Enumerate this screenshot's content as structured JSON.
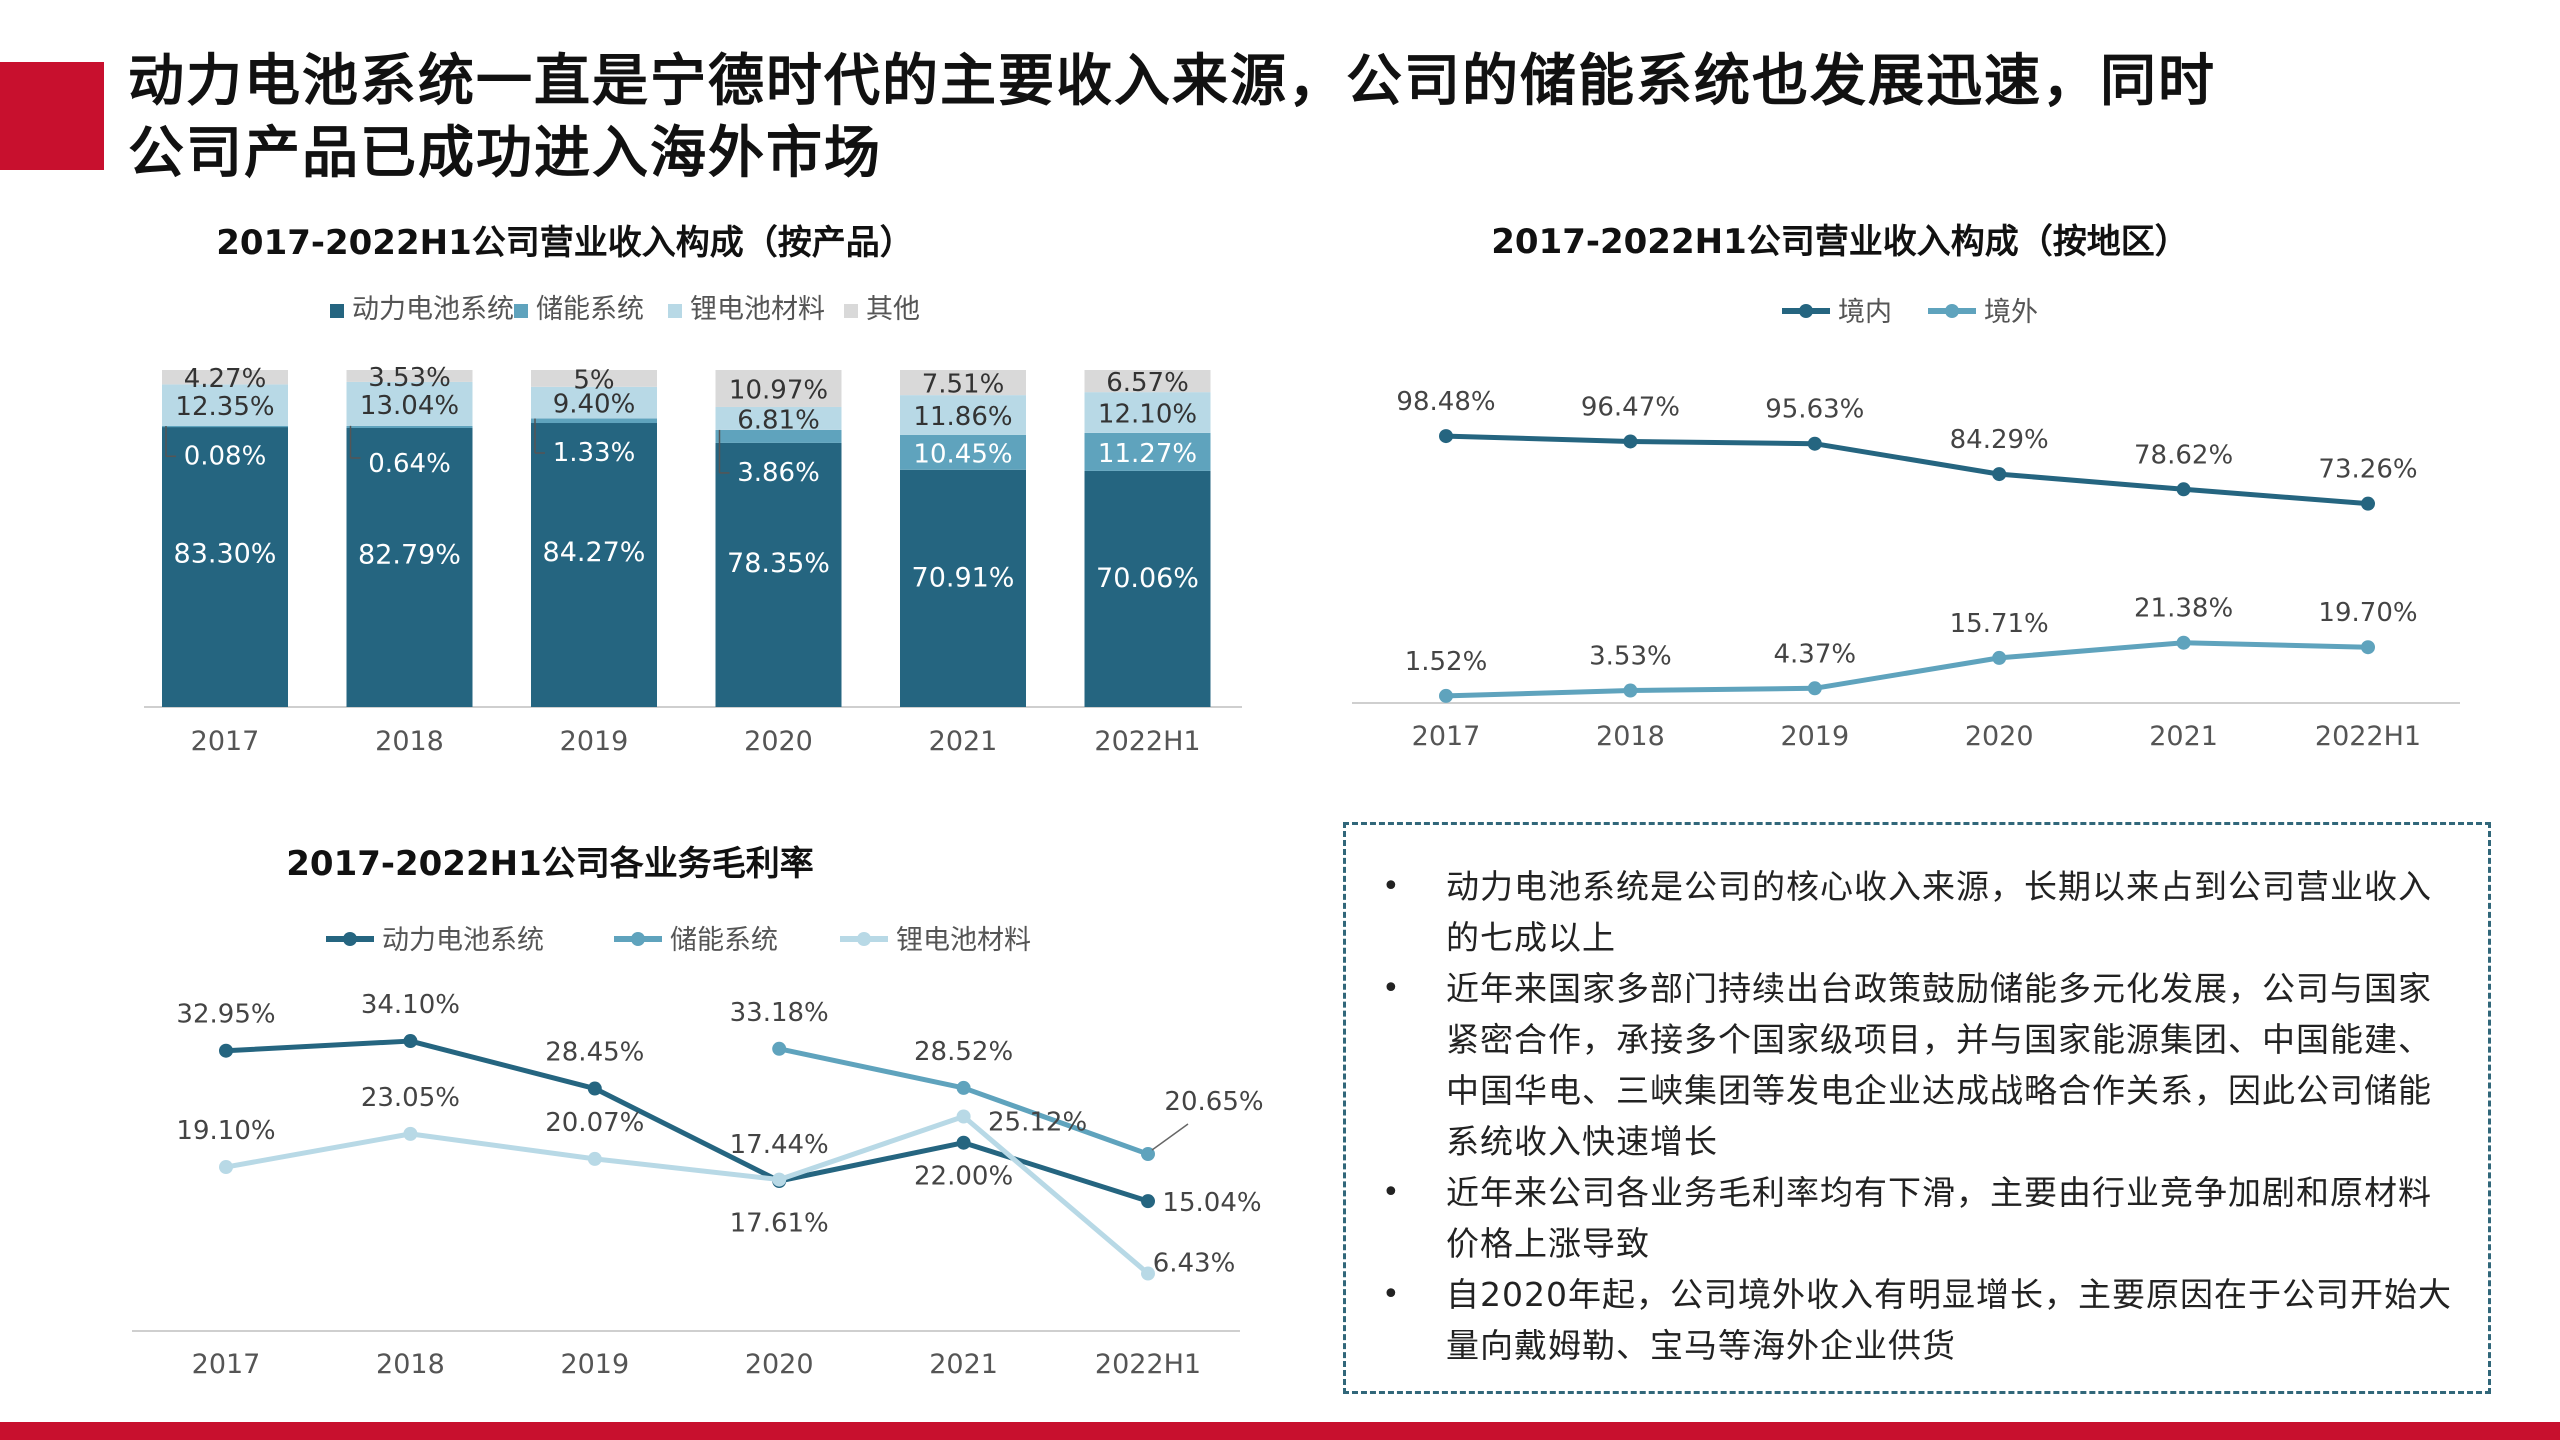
{
  "header": {
    "title_line1": "动力电池系统一直是宁德时代的主要收入来源，公司的储能系统也发展迅速，同时",
    "title_line2": "公司产品已成功进入海外市场"
  },
  "colors": {
    "accent": "#c8102e",
    "dark": "#256580",
    "mid": "#5fa3bd",
    "light": "#b8d9e6",
    "other": "#d9d9d9"
  },
  "chart_data": [
    {
      "type": "bar",
      "stacked": true,
      "title": "2017-2022H1公司营业收入构成（按产品）",
      "categories": [
        "2017",
        "2018",
        "2019",
        "2020",
        "2021",
        "2022H1"
      ],
      "series": [
        {
          "name": "动力电池系统",
          "values": [
            83.3,
            82.79,
            84.27,
            78.35,
            70.91,
            70.06
          ],
          "labels": [
            "83.30%",
            "82.79%",
            "84.27%",
            "78.35%",
            "70.91%",
            "70.06%"
          ]
        },
        {
          "name": "储能系统",
          "values": [
            0.08,
            0.64,
            1.33,
            3.86,
            10.45,
            11.27
          ],
          "labels": [
            "0.08%",
            "0.64%",
            "1.33%",
            "3.86%",
            "10.45%",
            "11.27%"
          ]
        },
        {
          "name": "锂电池材料",
          "values": [
            12.35,
            13.04,
            9.4,
            6.81,
            11.86,
            12.1
          ],
          "labels": [
            "12.35%",
            "13.04%",
            "9.40%",
            "6.81%",
            "11.86%",
            "12.10%"
          ]
        },
        {
          "name": "其他",
          "values": [
            4.27,
            3.53,
            5.0,
            10.97,
            7.51,
            6.57
          ],
          "labels": [
            "4.27%",
            "3.53%",
            "5%",
            "10.97%",
            "7.51%",
            "6.57%"
          ]
        }
      ],
      "ylim": [
        0,
        100
      ],
      "legend": "top"
    },
    {
      "type": "line",
      "title": "2017-2022H1公司营业收入构成（按地区）",
      "categories": [
        "2017",
        "2018",
        "2019",
        "2020",
        "2021",
        "2022H1"
      ],
      "series": [
        {
          "name": "境内",
          "values": [
            98.48,
            96.47,
            95.63,
            84.29,
            78.62,
            73.26
          ],
          "labels": [
            "98.48%",
            "96.47%",
            "95.63%",
            "84.29%",
            "78.62%",
            "73.26%"
          ]
        },
        {
          "name": "境外",
          "values": [
            1.52,
            3.53,
            4.37,
            15.71,
            21.38,
            19.7
          ],
          "labels": [
            "1.52%",
            "3.53%",
            "4.37%",
            "15.71%",
            "21.38%",
            "19.70%"
          ]
        }
      ],
      "legend": "top"
    },
    {
      "type": "line",
      "title": "2017-2022H1公司各业务毛利率",
      "categories": [
        "2017",
        "2018",
        "2019",
        "2020",
        "2021",
        "2022H1"
      ],
      "series": [
        {
          "name": "动力电池系统",
          "values": [
            32.95,
            34.1,
            28.45,
            17.44,
            22.0,
            15.04
          ],
          "labels": [
            "32.95%",
            "34.10%",
            "28.45%",
            "17.44%",
            "22.00%",
            "15.04%"
          ]
        },
        {
          "name": "储能系统",
          "values": [
            null,
            null,
            null,
            33.18,
            28.52,
            20.65
          ],
          "labels": [
            "",
            "",
            "",
            "33.18%",
            "28.52%",
            "20.65%"
          ]
        },
        {
          "name": "锂电池材料",
          "values": [
            19.1,
            23.05,
            20.07,
            17.61,
            25.12,
            6.43
          ],
          "labels": [
            "19.10%",
            "23.05%",
            "20.07%",
            "17.61%",
            "25.12%",
            "6.43%"
          ]
        }
      ],
      "legend": "top"
    }
  ],
  "notes": [
    "动力电池系统是公司的核心收入来源，长期以来占到公司营业收入的七成以上",
    "近年来国家多部门持续出台政策鼓励储能多元化发展，公司与国家紧密合作，承接多个国家级项目，并与国家能源集团、中国能建、中国华电、三峡集团等发电企业达成战略合作关系，因此公司储能系统收入快速增长",
    "近年来公司各业务毛利率均有下滑，主要由行业竞争加剧和原材料价格上涨导致",
    "自2020年起，公司境外收入有明显增长，主要原因在于公司开始大量向戴姆勒、宝马等海外企业供货"
  ],
  "bullet_symbol": "•"
}
